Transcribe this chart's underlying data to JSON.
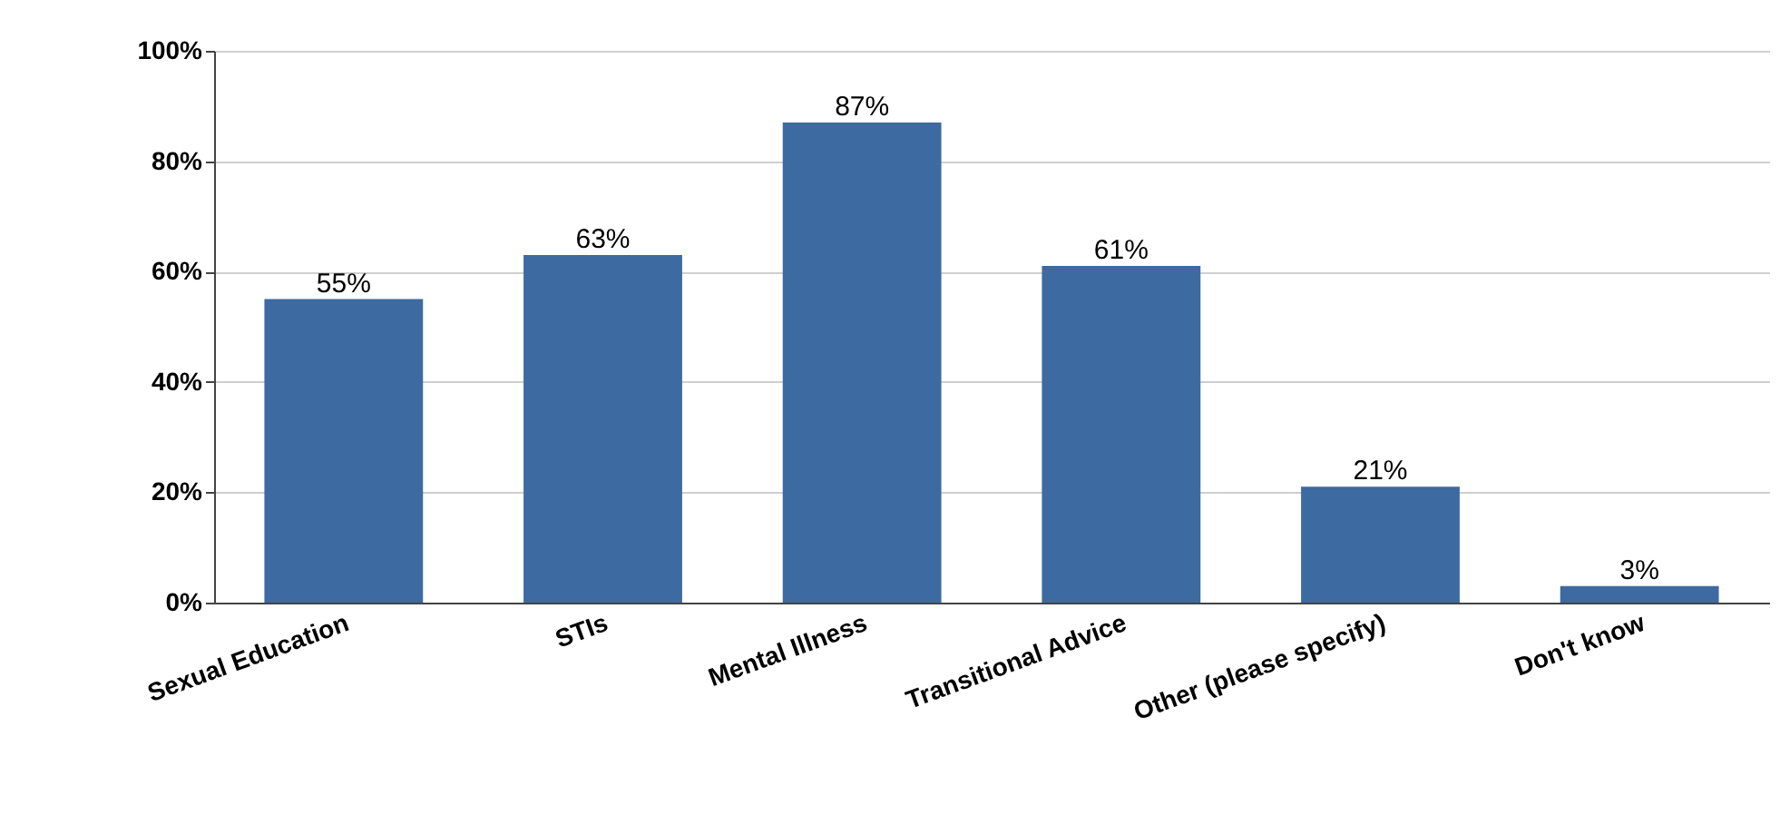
{
  "chart_data": {
    "type": "bar",
    "categories": [
      "Sexual Education",
      "STIs",
      "Mental Illness",
      "Transitional Advice",
      "Other (please specify)",
      "Don't know"
    ],
    "values": [
      55,
      63,
      87,
      61,
      21,
      3
    ],
    "value_labels": [
      "55%",
      "63%",
      "87%",
      "61%",
      "21%",
      "3%"
    ],
    "color": "#3d6aa0",
    "ylim": [
      0,
      100
    ],
    "yticks": [
      {
        "value": 0,
        "label": "0%"
      },
      {
        "value": 20,
        "label": "20%"
      },
      {
        "value": 40,
        "label": "40%"
      },
      {
        "value": 60,
        "label": "60%"
      },
      {
        "value": 80,
        "label": "80%"
      },
      {
        "value": 100,
        "label": "100%"
      }
    ],
    "grid": "y"
  }
}
